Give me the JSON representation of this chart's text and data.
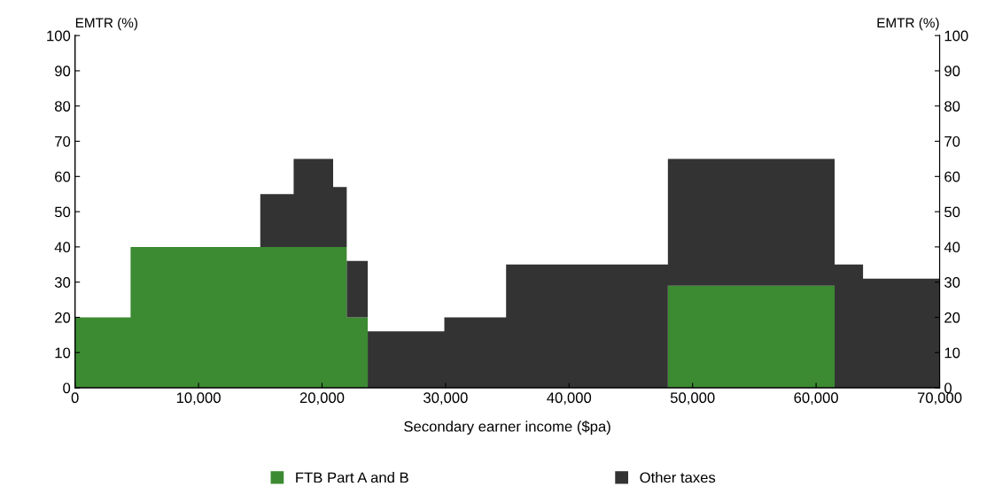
{
  "chart_data": {
    "type": "area",
    "stacked": true,
    "xlabel": "Secondary earner income ($pa)",
    "ylabel": "EMTR (%)",
    "y2label": "EMTR (%)",
    "x": [
      0,
      4500,
      4500,
      15000,
      15000,
      17700,
      17700,
      20900,
      20900,
      22000,
      22000,
      23700,
      23700,
      29900,
      29900,
      34900,
      34900,
      48000,
      48000,
      61500,
      61500,
      63800,
      63800,
      70000
    ],
    "series": [
      {
        "name": "FTB Part A and B",
        "color": "#3c8a32",
        "values": [
          20,
          20,
          40,
          40,
          40,
          40,
          40,
          40,
          40,
          40,
          20,
          20,
          0,
          0,
          0,
          0,
          0,
          0,
          29,
          29,
          0,
          0,
          0,
          0
        ]
      },
      {
        "name": "Other taxes",
        "color": "#333333",
        "values": [
          0,
          0,
          0,
          0,
          15,
          15,
          25,
          25,
          17,
          17,
          16,
          16,
          16,
          16,
          20,
          20,
          35,
          35,
          36,
          36,
          35,
          35,
          31,
          31
        ]
      }
    ],
    "xlim": [
      0,
      70000
    ],
    "xticks": [
      0,
      {
        "value": 10000,
        "label": "10,000"
      },
      {
        "value": 20000,
        "label": "20,000"
      },
      {
        "value": 30000,
        "label": "30,000"
      },
      {
        "value": 40000,
        "label": "40,000"
      },
      {
        "value": 50000,
        "label": "50,000"
      },
      {
        "value": 60000,
        "label": "60,000"
      },
      {
        "value": 70000,
        "label": "70,000"
      }
    ],
    "ylim": [
      0,
      100
    ],
    "yticks": [
      0,
      10,
      20,
      30,
      40,
      50,
      60,
      70,
      80,
      90,
      100
    ],
    "y2lim": [
      0,
      100
    ],
    "y2ticks": [
      0,
      10,
      20,
      30,
      40,
      50,
      60,
      70,
      80,
      90,
      100
    ],
    "grid": false,
    "legend": "bottom"
  }
}
